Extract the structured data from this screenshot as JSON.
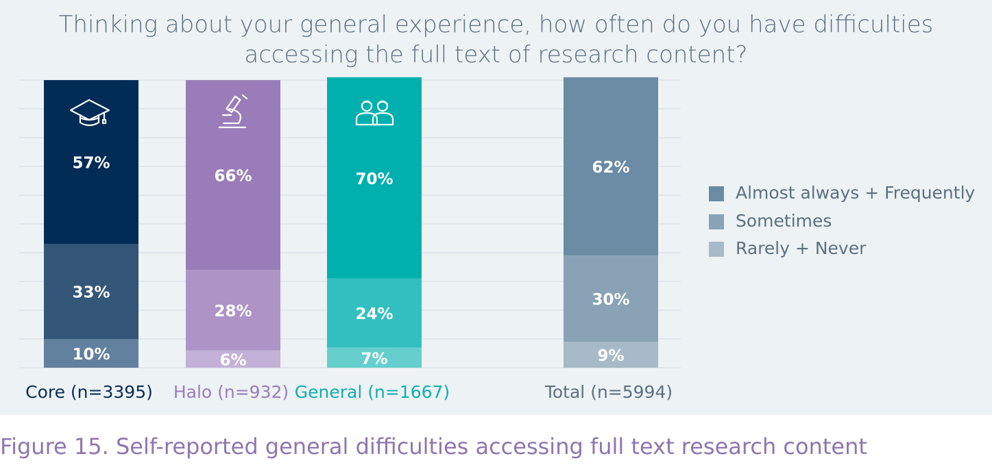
{
  "title_line1": "Thinking about your general experience, how often do you have difficulties",
  "title_line2": "accessing the full text of research content?",
  "caption": "Figure 15. Self-reported general difficulties accessing full text research content",
  "chart_data": {
    "type": "bar",
    "stacked": true,
    "unit": "%",
    "ylim": [
      0,
      100
    ],
    "grid": true,
    "legend_position": "right",
    "categories": [
      "Core (n=3395)",
      "Halo (n=932)",
      "General (n=1667)",
      "Total (n=5994)"
    ],
    "category_colors": [
      "#0b2c55",
      "#9a7db8",
      "#00b0af",
      "#6a8ba3"
    ],
    "icons": [
      "graduation-cap-icon",
      "microscope-icon",
      "people-icon",
      null
    ],
    "series": [
      {
        "name": "Rarely + Never",
        "values": [
          10,
          6,
          7,
          9
        ]
      },
      {
        "name": "Sometimes",
        "values": [
          33,
          28,
          24,
          30
        ]
      },
      {
        "name": "Almost always + Frequently",
        "values": [
          57,
          66,
          70,
          62
        ]
      }
    ],
    "segment_colors": [
      [
        "#61819e",
        "#335679",
        "#012c56"
      ],
      [
        "#c3b1d7",
        "#ad93c6",
        "#9a7db8"
      ],
      [
        "#66cfcd",
        "#33bfbf",
        "#00b0af"
      ],
      [
        "#a6bac7",
        "#89a2b5",
        "#6a8ba3"
      ]
    ],
    "legend_colors": [
      "#6a8ba3",
      "#89a2b5",
      "#a6bac7"
    ]
  }
}
